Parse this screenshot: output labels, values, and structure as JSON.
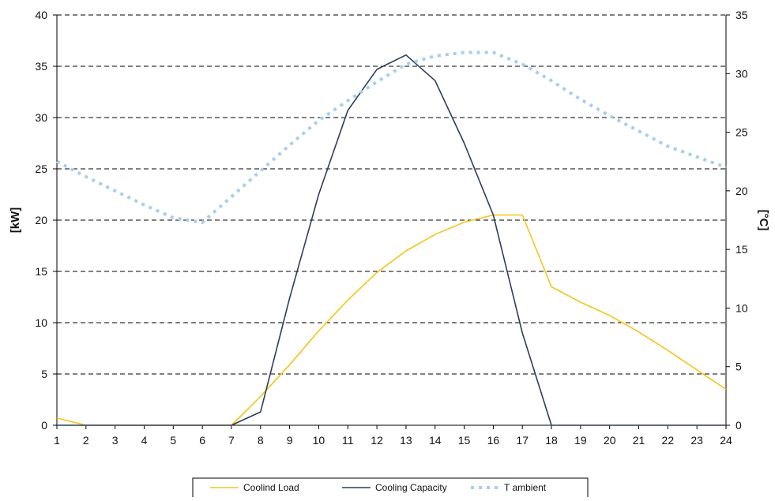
{
  "chart_data": {
    "type": "line",
    "x": [
      1,
      2,
      3,
      4,
      5,
      6,
      7,
      8,
      9,
      10,
      11,
      12,
      13,
      14,
      15,
      16,
      17,
      18,
      19,
      20,
      21,
      22,
      23,
      24
    ],
    "x_ticks": [
      "1",
      "2",
      "3",
      "4",
      "5",
      "6",
      "7",
      "8",
      "9",
      "10",
      "11",
      "12",
      "13",
      "14",
      "15",
      "16",
      "17",
      "18",
      "19",
      "20",
      "21",
      "22",
      "23",
      "24"
    ],
    "ylabel_left": "[kW]",
    "ylabel_right": "[°C]",
    "ylim_left": [
      0,
      40
    ],
    "ylim_right": [
      0,
      35
    ],
    "yticks_left": [
      "0",
      "5",
      "10",
      "15",
      "20",
      "25",
      "30",
      "35",
      "40"
    ],
    "yticks_right": [
      "0",
      "5",
      "10",
      "15",
      "20",
      "25",
      "30",
      "35"
    ],
    "grid": "horizontal dashed",
    "legend_position": "bottom",
    "series": [
      {
        "name": "Coolind Load",
        "axis": "left",
        "color": "#f5c518",
        "style": "solid",
        "values": [
          0.7,
          0,
          0,
          0,
          0,
          0,
          0,
          2.8,
          5.9,
          9.2,
          12.2,
          14.9,
          17.0,
          18.6,
          19.8,
          20.5,
          20.5,
          13.5,
          12.0,
          10.7,
          9.1,
          7.3,
          5.4,
          3.5
        ]
      },
      {
        "name": "Cooling Capacity",
        "axis": "left",
        "color": "#2c3e5c",
        "style": "solid",
        "values": [
          0,
          0,
          0,
          0,
          0,
          0,
          0,
          1.3,
          12.4,
          22.5,
          30.7,
          34.7,
          36.1,
          33.6,
          27.5,
          20.5,
          9.0,
          0,
          0,
          0,
          0,
          0,
          0,
          0
        ]
      },
      {
        "name": "T ambient",
        "axis": "right",
        "color": "#a9cdf0",
        "style": "dotted",
        "values": [
          22.5,
          21.2,
          20.0,
          18.8,
          17.7,
          17.3,
          19.5,
          21.7,
          23.9,
          26.0,
          27.7,
          29.3,
          30.8,
          31.5,
          31.8,
          31.8,
          30.8,
          29.4,
          27.8,
          26.4,
          25.1,
          23.8,
          22.9,
          22.0
        ]
      }
    ]
  }
}
